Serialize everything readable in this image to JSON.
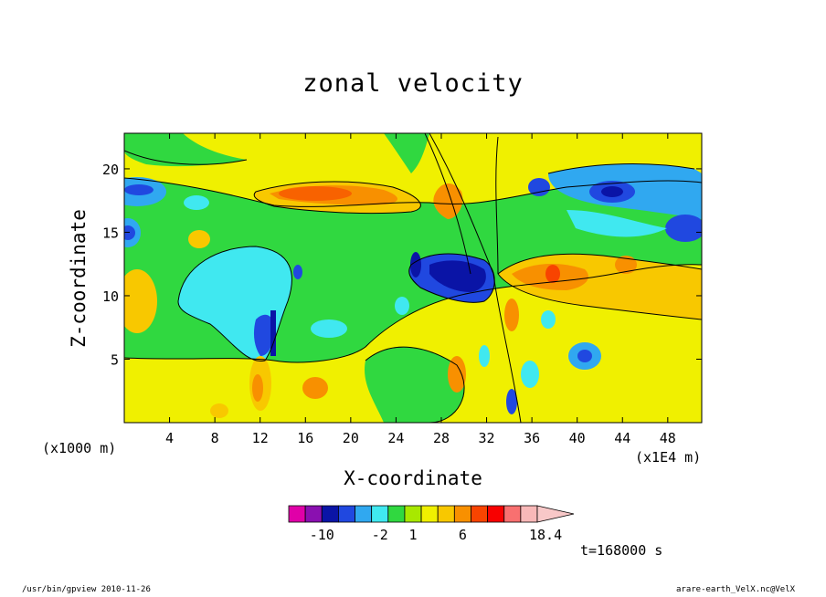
{
  "chart_data": {
    "type": "heatmap",
    "title": "zonal velocity",
    "xlabel": "X-coordinate",
    "ylabel": "Z-coordinate",
    "x_unit_label": "(x1000 m)",
    "x_scale_label": "(x1E4 m)",
    "xlim": [
      0,
      51
    ],
    "ylim": [
      0,
      22.8
    ],
    "x_ticks": [
      4,
      8,
      12,
      16,
      20,
      24,
      28,
      32,
      36,
      40,
      44,
      48
    ],
    "y_ticks": [
      5,
      10,
      15,
      20
    ],
    "colorbar": {
      "colors": [
        "#e000a8",
        "#8a10b0",
        "#0a14a6",
        "#2048e0",
        "#30a8f0",
        "#40e8f0",
        "#30d840",
        "#a8e800",
        "#f0f000",
        "#f8c800",
        "#f89000",
        "#f84400",
        "#f80000",
        "#f87070",
        "#f8b8b8",
        "#f8c8c8"
      ],
      "labels": [
        {
          "text": "-10",
          "index": 2
        },
        {
          "text": "-2",
          "index": 5.5
        },
        {
          "text": "1",
          "index": 7.5
        },
        {
          "text": "6",
          "index": 10.5
        },
        {
          "text": "18.4",
          "index": 15.5
        }
      ]
    },
    "field_features": [
      {
        "x": 18,
        "z": 17.8,
        "value": 12,
        "color": "#f89000"
      },
      {
        "x": 30,
        "z": 12.5,
        "value": -8,
        "color": "#0a14a6"
      },
      {
        "x": 13,
        "z": 7,
        "value": -6,
        "color": "#2048e0"
      },
      {
        "x": 45,
        "z": 18,
        "value": -8,
        "color": "#2048e0"
      },
      {
        "x": 38,
        "z": 11.5,
        "value": 10,
        "color": "#f89000"
      },
      {
        "x": 8,
        "z": 10,
        "value": -4,
        "color": "#40e8f0"
      }
    ]
  },
  "annotations": {
    "time": "t=168000 s",
    "footer_left": "/usr/bin/gpview  2010-11-26",
    "footer_right": "arare-earth_VelX.nc@VelX"
  }
}
